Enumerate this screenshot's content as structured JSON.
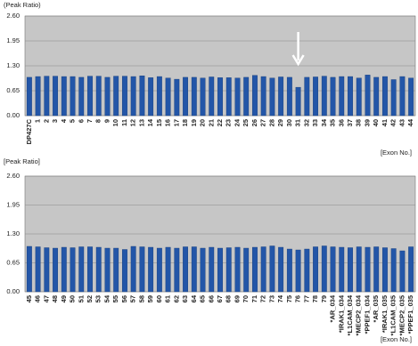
{
  "chart_data": [
    {
      "type": "bar",
      "y_label": "(Peak Ratio)",
      "x_label": "[Exon No.]",
      "categories": [
        "DP427C",
        "1",
        "2",
        "3",
        "4",
        "5",
        "6",
        "7",
        "8",
        "9",
        "10",
        "11",
        "12",
        "13",
        "14",
        "15",
        "16",
        "17",
        "18",
        "19",
        "20",
        "21",
        "22",
        "23",
        "24",
        "25",
        "26",
        "27",
        "28",
        "29",
        "30",
        "31",
        "32",
        "33",
        "34",
        "35",
        "36",
        "37",
        "38",
        "39",
        "40",
        "41",
        "42",
        "43",
        "44"
      ],
      "values": [
        1.0,
        1.02,
        1.03,
        1.03,
        1.02,
        1.02,
        1.0,
        1.03,
        1.03,
        1.0,
        1.03,
        1.03,
        1.02,
        1.04,
        0.99,
        1.02,
        0.98,
        0.95,
        1.0,
        1.0,
        0.98,
        1.01,
        0.99,
        0.99,
        0.98,
        1.0,
        1.05,
        1.02,
        0.98,
        1.01,
        1.0,
        0.74,
        1.0,
        1.01,
        1.03,
        1.0,
        1.02,
        1.02,
        0.98,
        1.06,
        1.0,
        1.02,
        0.94,
        1.02,
        0.98
      ],
      "color": "#2356a8",
      "ylim": [
        0,
        2.6
      ],
      "yticks": [
        {
          "value": 0,
          "label": "0.00"
        },
        0.65,
        {
          "value": 1.3,
          "label": "1.30"
        },
        1.95,
        {
          "value": 2.6,
          "label": "2.60"
        }
      ],
      "grid": true
    },
    {
      "type": "bar",
      "y_label": "[Peak Ratio]",
      "x_label": "[Exon No.]",
      "categories": [
        "45",
        "46",
        "47",
        "48",
        "49",
        "50",
        "51",
        "52",
        "53",
        "54",
        "55",
        "56",
        "57",
        "58",
        "59",
        "60",
        "61",
        "62",
        "63",
        "64",
        "65",
        "66",
        "67",
        "68",
        "69",
        "70",
        "71",
        "72",
        "73",
        "74",
        "75",
        "76",
        "77",
        "78",
        "79",
        "*AR_034",
        "*IRAK1_034",
        "*L1CAM_034",
        "*MECP2_034",
        "*PPEF1_034",
        "*AR_035",
        "*IRAK1_035",
        "*L1CAM_035",
        "*MECP2_035",
        "*PPEF1_035"
      ],
      "values": [
        1.02,
        1.01,
        0.99,
        0.98,
        1.0,
        0.99,
        1.01,
        1.01,
        1.0,
        0.98,
        0.98,
        0.95,
        1.02,
        1.01,
        1.0,
        0.98,
        1.0,
        0.98,
        1.01,
        1.01,
        0.98,
        1.0,
        0.98,
        0.99,
        1.0,
        0.98,
        1.0,
        1.01,
        1.03,
        1.0,
        0.96,
        0.94,
        0.96,
        1.01,
        1.03,
        1.01,
        1.0,
        0.99,
        1.01,
        1.0,
        1.01,
        0.99,
        0.97,
        0.92,
        1.01
      ],
      "color": "#2356a8",
      "ylim": [
        0,
        2.6
      ],
      "yticks": [
        {
          "value": 0,
          "label": "0.00"
        },
        0.65,
        {
          "value": 1.3,
          "label": "1.30"
        },
        1.95,
        {
          "value": 2.6,
          "label": "2.60"
        }
      ],
      "grid": true
    }
  ]
}
